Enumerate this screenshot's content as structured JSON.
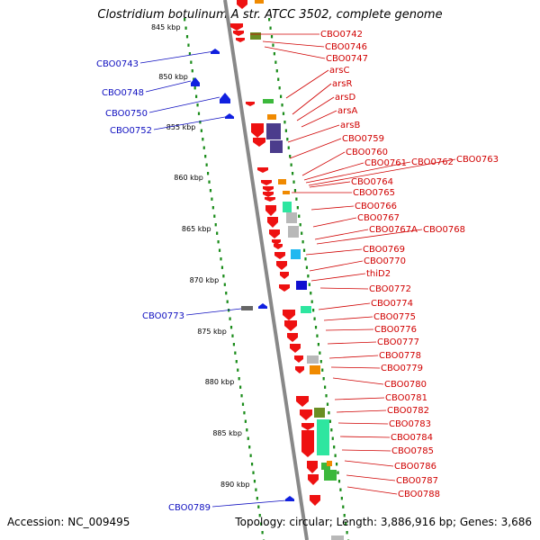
{
  "title": "Clostridium botulinum A str. ATCC 3502, complete genome",
  "footer": {
    "accession": "Accession: NC_009495",
    "topology": "Topology: circular; Length: 3,886,916 bp; Genes: 3,686"
  },
  "colors": {
    "backbone": "#888888",
    "tick": "#1a8c1a",
    "label_right": "#d00000",
    "label_left": "#1010c0",
    "forward_arrow": "#ee1111",
    "reverse_arrow": "#1020e0",
    "cds_orange": "#f08a00",
    "cds_olive": "#6a8e23",
    "cds_green": "#3cb83c",
    "cds_navy": "#4b3c8c",
    "cds_mint": "#2ee6a0",
    "cds_grey": "#b8b8b8",
    "cds_sky": "#22b8f0",
    "cds_blue": "#1010d0",
    "cds_darkgrey": "#666666"
  },
  "kbp_marks": [
    "845 kbp",
    "850 kbp",
    "855 kbp",
    "860 kbp",
    "865 kbp",
    "870 kbp",
    "875 kbp",
    "880 kbp",
    "885 kbp",
    "890 kbp"
  ],
  "genes_right": [
    "CBO0742",
    "CBO0746",
    "CBO0747",
    "arsC",
    "arsR",
    "arsD",
    "arsA",
    "arsB",
    "CBO0759",
    "CBO0760",
    "CBO0761",
    "CBO0762",
    "CBO0763",
    "CBO0764",
    "CBO0765",
    "CBO0766",
    "CBO0767",
    "CBO0767A",
    "CBO0768",
    "CBO0769",
    "CBO0770",
    "thiD2",
    "CBO0772",
    "CBO0774",
    "CBO0775",
    "CBO0776",
    "CBO0777",
    "CBO0778",
    "CBO0779",
    "CBO0780",
    "CBO0781",
    "CBO0782",
    "CBO0783",
    "CBO0784",
    "CBO0785",
    "CBO0786",
    "CBO0787",
    "CBO0788"
  ],
  "genes_left": [
    "CBO0743",
    "CBO0748",
    "CBO0750",
    "CBO0752",
    "CBO0773",
    "CBO0789"
  ]
}
